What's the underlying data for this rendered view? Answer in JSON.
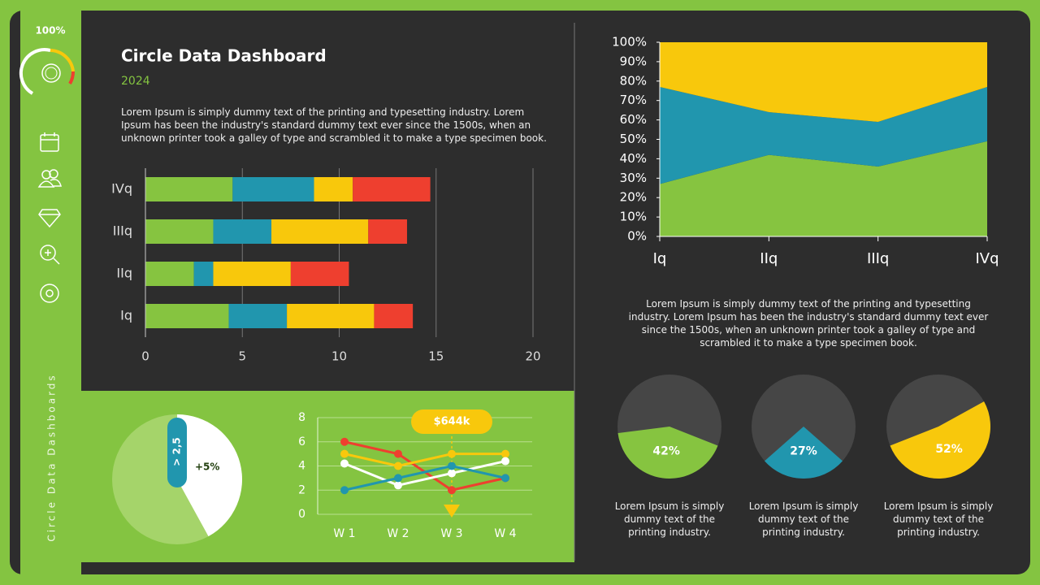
{
  "sidebar": {
    "gauge_label": "100%",
    "title": "Circle Data Dashboards"
  },
  "header": {
    "title": "Circle Data Dashboard",
    "subtitle": "2024",
    "text": "Lorem Ipsum is simply dummy text of the printing and typesetting industry. Lorem Ipsum has been the industry's standard dummy text ever since the 1500s, when an unknown printer took a galley of type and scrambled it to make a type specimen book."
  },
  "right_text": "Lorem Ipsum is simply dummy text of the printing and typesetting industry. Lorem Ipsum has been the industry's standard dummy text ever since the 1500s, when an unknown printer took a galley of type and scrambled it to make a type specimen book.",
  "chart_data": [
    {
      "type": "bar",
      "orientation": "horizontal",
      "stacked": true,
      "categories": [
        "Iq",
        "IIq",
        "IIIq",
        "IVq"
      ],
      "series": [
        {
          "color": "#86c440",
          "values": [
            4.3,
            2.5,
            3.5,
            4.5
          ]
        },
        {
          "color": "#2196ae",
          "values": [
            3.0,
            1.0,
            3.0,
            4.2
          ]
        },
        {
          "color": "#f8c80c",
          "values": [
            4.5,
            4.0,
            5.0,
            2.0
          ]
        },
        {
          "color": "#ee3f2f",
          "values": [
            2.0,
            3.0,
            2.0,
            4.0
          ]
        }
      ],
      "xlim": [
        0,
        20
      ],
      "xticks": [
        0,
        5,
        10,
        15,
        20
      ],
      "grid": true
    },
    {
      "type": "area",
      "stacked": true,
      "categories": [
        "Iq",
        "IIq",
        "IIIq",
        "IVq"
      ],
      "series": [
        {
          "color": "#86c440",
          "values": [
            27,
            42,
            36,
            49
          ]
        },
        {
          "color": "#2196ae",
          "values": [
            50,
            22,
            23,
            28
          ]
        },
        {
          "color": "#f8c80c",
          "values": [
            23,
            36,
            41,
            23
          ]
        }
      ],
      "ylim": [
        0,
        100
      ],
      "yticks": [
        {
          "value": 0,
          "label": "0%"
        },
        {
          "value": 10,
          "label": "10%"
        },
        {
          "value": 20,
          "label": "20%"
        },
        {
          "value": 30,
          "label": "30%"
        },
        {
          "value": 40,
          "label": "40%"
        },
        {
          "value": 50,
          "label": "50%"
        },
        {
          "value": 60,
          "label": "60%"
        },
        {
          "value": 70,
          "label": "70%"
        },
        {
          "value": 80,
          "label": "80%"
        },
        {
          "value": 90,
          "label": "90%"
        },
        {
          "value": 100,
          "label": "100%"
        }
      ]
    },
    {
      "type": "line",
      "categories": [
        "W 1",
        "W 2",
        "W 3",
        "W 4"
      ],
      "series": [
        {
          "color": "#ee3f2f",
          "values": [
            6,
            5,
            2,
            3
          ]
        },
        {
          "color": "#f8c80c",
          "values": [
            5,
            4,
            5,
            5
          ]
        },
        {
          "color": "#ffffff",
          "values": [
            4.2,
            2.4,
            3.4,
            4.4
          ]
        },
        {
          "color": "#2196ae",
          "values": [
            2,
            3,
            4,
            3
          ]
        }
      ],
      "ylim": [
        0,
        8
      ],
      "yticks": [
        0,
        2,
        4,
        6,
        8
      ],
      "grid": true,
      "annotation": "$644k"
    },
    {
      "type": "pie",
      "values": [
        42
      ],
      "color": "#ffffff",
      "rest_color": "#a5d46a",
      "annotations": [
        "> 2,5",
        "+5%"
      ]
    },
    {
      "type": "pie",
      "values": [
        42
      ],
      "value_labels": [
        "42%"
      ],
      "color": "#86c440",
      "rest_color": "#464646",
      "caption": "Lorem Ipsum is simply dummy text of the printing industry."
    },
    {
      "type": "pie",
      "values": [
        27
      ],
      "value_labels": [
        "27%"
      ],
      "color": "#2196ae",
      "rest_color": "#464646",
      "caption": "Lorem Ipsum is simply dummy text of the printing industry."
    },
    {
      "type": "pie",
      "values": [
        52
      ],
      "value_labels": [
        "52%"
      ],
      "color": "#f8c80c",
      "rest_color": "#464646",
      "caption": "Lorem Ipsum is simply dummy text of the printing industry."
    }
  ]
}
